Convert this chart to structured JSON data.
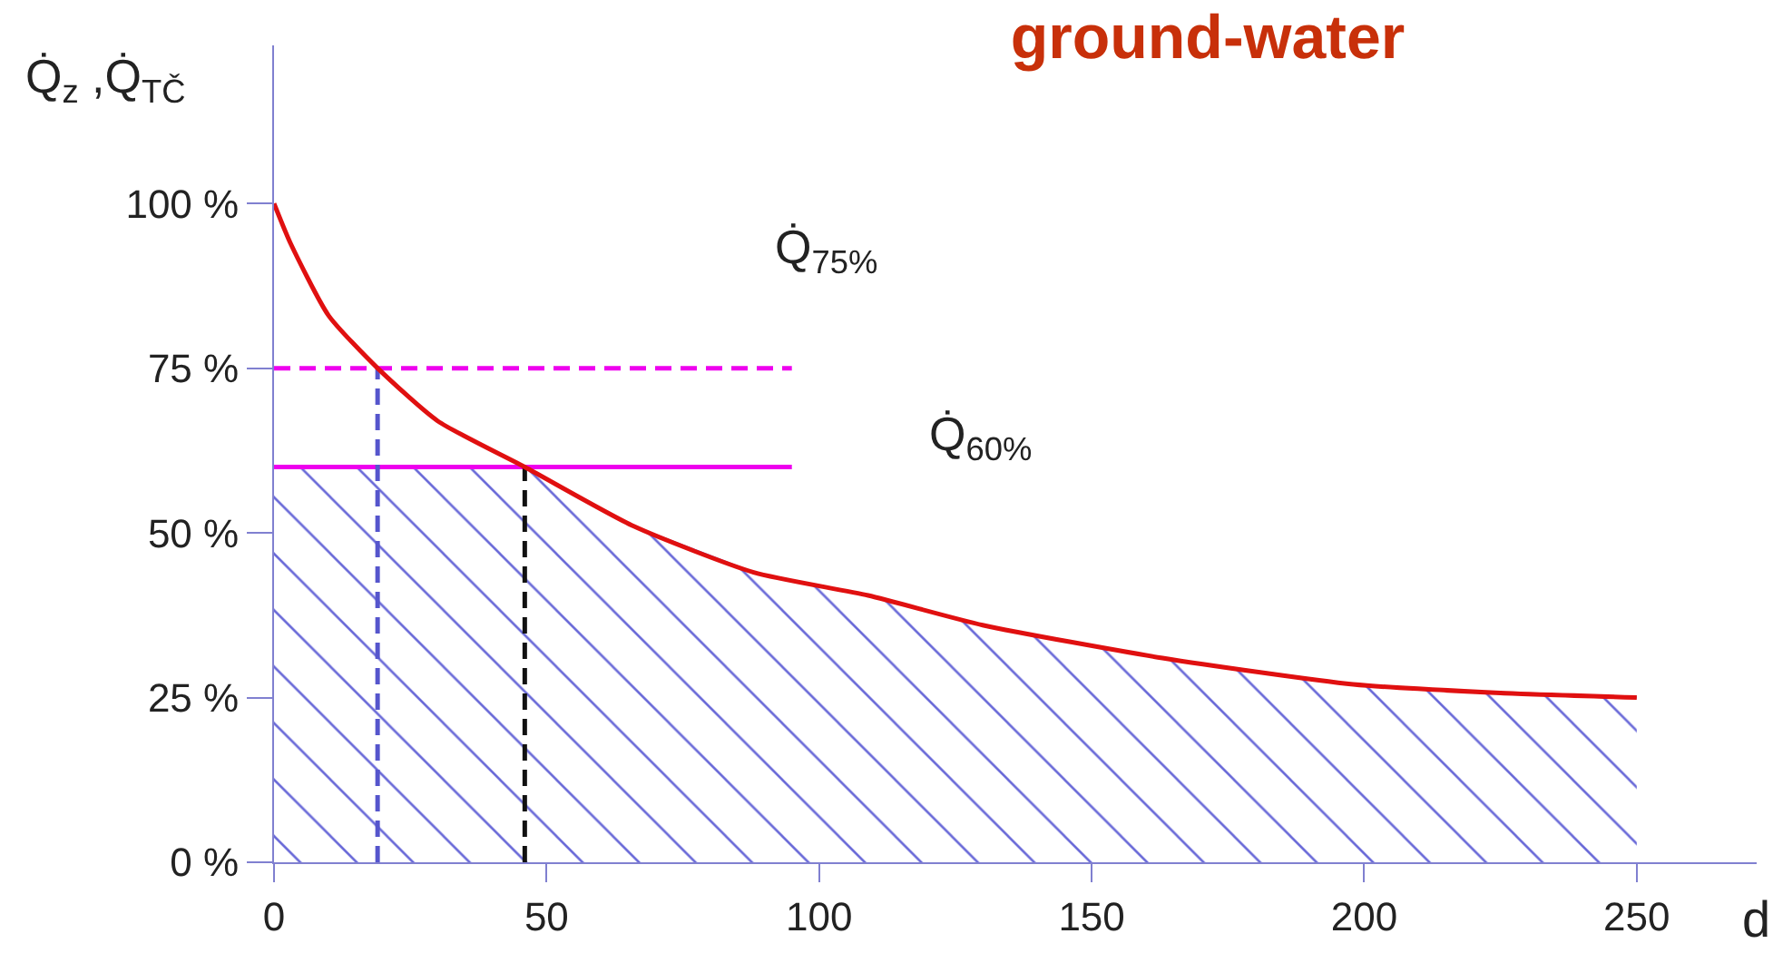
{
  "chart_data": {
    "type": "line",
    "title": "ground-water",
    "xlabel": "d",
    "ylabel": "Q̇$_{z}$ ,Q̇$_{TČ}$",
    "xlim": [
      0,
      272
    ],
    "xticks": [
      0,
      50,
      100,
      150,
      200,
      250
    ],
    "ylim": [
      0,
      124
    ],
    "yticks": [
      {
        "value": 0,
        "label": "0 %"
      },
      {
        "value": 25,
        "label": "25 %"
      },
      {
        "value": 50,
        "label": "50 %"
      },
      {
        "value": 75,
        "label": "75 %"
      },
      {
        "value": 100,
        "label": "100 %"
      }
    ],
    "grid": false,
    "marker": "none",
    "series": [
      {
        "type": "area",
        "color": "#6a6ad8",
        "x": [
          0,
          46,
          66,
          88,
          109,
          130,
          163,
          198,
          225,
          250
        ],
        "values": [
          60,
          60,
          51,
          44,
          40.5,
          36,
          31,
          27,
          25.7,
          25
        ]
      },
      {
        "color": "#ee00ee",
        "line_style": "dashed",
        "x": [
          0,
          95
        ],
        "values": [
          75,
          75
        ]
      },
      {
        "color": "#ee00ee",
        "line_style": "solid",
        "x": [
          0,
          95
        ],
        "values": [
          60,
          60
        ]
      },
      {
        "color": "#5555cc",
        "line_style": "dashed",
        "x": [
          19,
          19
        ],
        "values": [
          0,
          75
        ]
      },
      {
        "color": "#111111",
        "line_style": "dashed",
        "x": [
          46,
          46
        ],
        "values": [
          0,
          60
        ]
      },
      {
        "color": "#e01010",
        "line_style": "solid",
        "x": [
          0,
          3,
          10,
          19,
          30,
          46,
          66,
          88,
          109,
          130,
          163,
          198,
          225,
          250
        ],
        "values": [
          100,
          94,
          83,
          75,
          67,
          60,
          51,
          44,
          40.5,
          36,
          31,
          27,
          25.7,
          25
        ]
      }
    ],
    "annotations": [
      "Q̇$_{75%}$",
      "Q̇$_{60%}$"
    ]
  }
}
